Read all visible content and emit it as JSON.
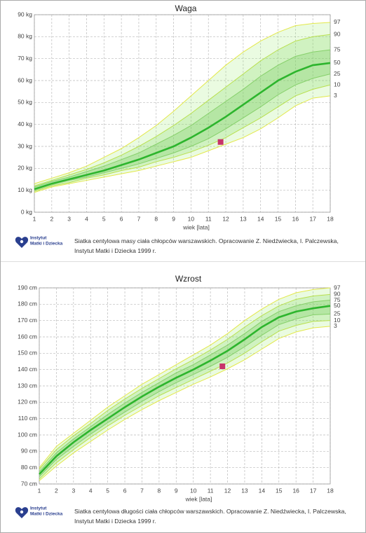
{
  "chart_data": [
    {
      "type": "line",
      "title": "Waga",
      "xlabel": "wiek [lata]",
      "x": [
        1,
        2,
        3,
        4,
        5,
        6,
        7,
        8,
        9,
        10,
        11,
        12,
        13,
        14,
        15,
        16,
        17,
        18
      ],
      "xlim": [
        1,
        18
      ],
      "ylim": [
        0,
        90
      ],
      "xticks": [
        1,
        2,
        3,
        4,
        5,
        6,
        7,
        8,
        9,
        10,
        11,
        12,
        13,
        14,
        15,
        16,
        17,
        18
      ],
      "yticks": [
        {
          "value": 0,
          "label": "0 kg"
        },
        {
          "value": 10,
          "label": "10 kg"
        },
        {
          "value": 20,
          "label": "20 kg"
        },
        {
          "value": 30,
          "label": "30 kg"
        },
        {
          "value": 40,
          "label": "40 kg"
        },
        {
          "value": 50,
          "label": "50 kg"
        },
        {
          "value": 60,
          "label": "60 kg"
        },
        {
          "value": 70,
          "label": "70 kg"
        },
        {
          "value": 80,
          "label": "80 kg"
        },
        {
          "value": 90,
          "label": "90 kg"
        }
      ],
      "grid": true,
      "series": [
        {
          "name": "97",
          "color": "#e3e84a",
          "values": [
            13,
            15.5,
            18,
            21,
            25,
            29,
            34,
            39.5,
            46,
            53,
            60,
            67,
            73,
            78,
            82,
            85,
            86,
            86.5
          ]
        },
        {
          "name": "90",
          "color": "#b9e04e",
          "values": [
            12,
            14.5,
            17,
            19.5,
            22.5,
            26,
            30,
            34.5,
            39.5,
            45,
            51,
            57,
            63,
            69,
            74,
            78,
            80,
            81
          ]
        },
        {
          "name": "75",
          "color": "#86d06a",
          "values": [
            11.5,
            14,
            16,
            18.5,
            21,
            24,
            27,
            31,
            35,
            39.5,
            45,
            50.5,
            56,
            62,
            67,
            71,
            73,
            74
          ]
        },
        {
          "name": "50",
          "color": "#2db52d",
          "values": [
            10.5,
            13,
            15,
            17,
            19,
            21.5,
            24,
            27,
            30,
            34,
            38.5,
            43.5,
            49,
            54.5,
            60,
            64,
            67,
            68
          ]
        },
        {
          "name": "25",
          "color": "#86d06a",
          "values": [
            10,
            12.5,
            14.5,
            16,
            18,
            20,
            22,
            24.5,
            27,
            30,
            33.5,
            38,
            43,
            48,
            53.5,
            58,
            61,
            63
          ]
        },
        {
          "name": "10",
          "color": "#b9e04e",
          "values": [
            9.5,
            12,
            13.5,
            15.5,
            17,
            19,
            20.5,
            23,
            25,
            27.5,
            30.5,
            34,
            38.5,
            43,
            48,
            53,
            56,
            58
          ]
        },
        {
          "name": "3",
          "color": "#e3e84a",
          "values": [
            9,
            11.5,
            13,
            14.5,
            16,
            17.5,
            19,
            21,
            23,
            25,
            28,
            31,
            34,
            38,
            43,
            48.5,
            52,
            53
          ]
        }
      ],
      "point": {
        "x": 11.7,
        "y": 32,
        "color": "#c8336a"
      },
      "caption": "Siatka centylowa masy ciała chłopców warszawskich. Opracowanie Z. Niedźwiecka, I. Palczewska, Instytut Matki i Dziecka 1999 r.",
      "logo": [
        "Instytut",
        "Matki i Dziecka"
      ]
    },
    {
      "type": "line",
      "title": "Wzrost",
      "xlabel": "wiek [lata]",
      "x": [
        1,
        2,
        3,
        4,
        5,
        6,
        7,
        8,
        9,
        10,
        11,
        12,
        13,
        14,
        15,
        16,
        17,
        18
      ],
      "xlim": [
        1,
        18
      ],
      "ylim": [
        70,
        190
      ],
      "xticks": [
        1,
        2,
        3,
        4,
        5,
        6,
        7,
        8,
        9,
        10,
        11,
        12,
        13,
        14,
        15,
        16,
        17,
        18
      ],
      "yticks": [
        {
          "value": 70,
          "label": "70 cm"
        },
        {
          "value": 80,
          "label": "80 cm"
        },
        {
          "value": 90,
          "label": "90 cm"
        },
        {
          "value": 100,
          "label": "100 cm"
        },
        {
          "value": 110,
          "label": "110 cm"
        },
        {
          "value": 120,
          "label": "120 cm"
        },
        {
          "value": 130,
          "label": "130 cm"
        },
        {
          "value": 140,
          "label": "140 cm"
        },
        {
          "value": 150,
          "label": "150 cm"
        },
        {
          "value": 160,
          "label": "160 cm"
        },
        {
          "value": 170,
          "label": "170 cm"
        },
        {
          "value": 180,
          "label": "180 cm"
        },
        {
          "value": 190,
          "label": "190 cm"
        }
      ],
      "grid": true,
      "series": [
        {
          "name": "97",
          "color": "#e3e84a",
          "values": [
            80,
            93,
            101,
            109,
            117,
            124,
            131,
            137,
            143,
            149,
            155,
            162,
            170,
            177,
            183,
            187,
            189,
            190
          ]
        },
        {
          "name": "90",
          "color": "#b9e04e",
          "values": [
            79,
            91,
            99.5,
            107,
            115,
            122,
            128.5,
            134.5,
            140.5,
            146,
            152,
            158.5,
            166,
            173,
            179,
            183,
            185,
            186
          ]
        },
        {
          "name": "75",
          "color": "#86d06a",
          "values": [
            77.5,
            89,
            97.5,
            105,
            112.5,
            119.5,
            126,
            132,
            138,
            143,
            149,
            155,
            162,
            169.5,
            175.5,
            179,
            181.5,
            182.5
          ]
        },
        {
          "name": "50",
          "color": "#2db52d",
          "values": [
            76,
            87,
            95.5,
            103,
            110,
            117,
            123.5,
            129.5,
            135,
            140,
            145.5,
            151.5,
            158.5,
            166,
            172,
            175.5,
            177.5,
            179
          ]
        },
        {
          "name": "25",
          "color": "#86d06a",
          "values": [
            74.5,
            85,
            93,
            100.5,
            107.5,
            114,
            120.5,
            126.5,
            132,
            137,
            142,
            147.5,
            154,
            161,
            167.5,
            171,
            173.5,
            174
          ]
        },
        {
          "name": "10",
          "color": "#b9e04e",
          "values": [
            73,
            83,
            91,
            98.5,
            105.5,
            112,
            118,
            124,
            129,
            134,
            139,
            144,
            150,
            157,
            163.5,
            167,
            169.5,
            170
          ]
        },
        {
          "name": "3",
          "color": "#e3e84a",
          "values": [
            72,
            81,
            89,
            96,
            103,
            109.5,
            115.5,
            121,
            126,
            131,
            135.5,
            140.5,
            146,
            152.5,
            159,
            163,
            165.5,
            166.5
          ]
        }
      ],
      "point": {
        "x": 11.7,
        "y": 142,
        "color": "#c8336a"
      },
      "caption": "Siatka centylowa długości ciała chłopców warszawskich. Opracowanie Z. Niedźwiecka, I. Palczewska, Instytut Matki i Dziecka 1999 r.",
      "logo": [
        "Instytut",
        "Matki i Dziecka"
      ]
    }
  ]
}
